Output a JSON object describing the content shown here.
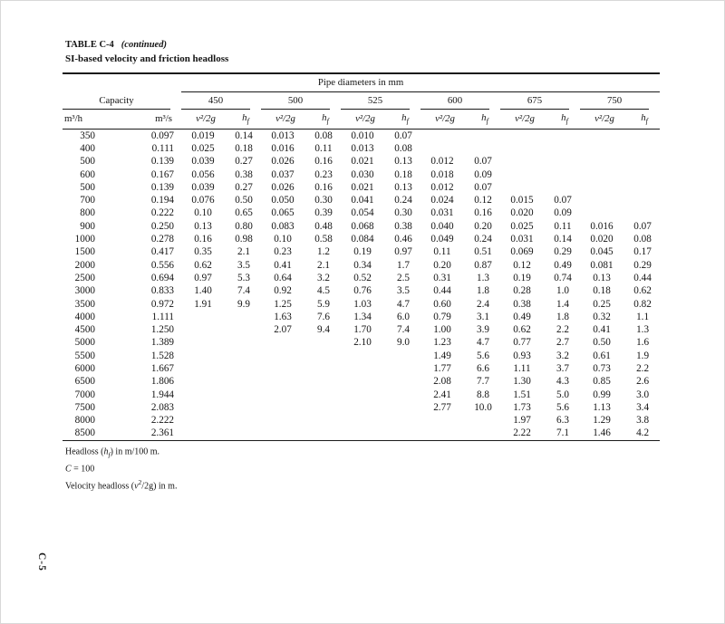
{
  "title": {
    "label": "TABLE C-4",
    "continued": "(continued)",
    "subtitle": "SI-based velocity and friction headloss"
  },
  "table": {
    "span_header": "Pipe diameters in mm",
    "capacity_label": "Capacity",
    "unit_hour": "m³/h",
    "unit_second": "m³/s",
    "diameters": [
      "450",
      "500",
      "525",
      "600",
      "675",
      "750"
    ],
    "velocity_head_label": "v²/2g",
    "headloss_label": {
      "base": "h",
      "sub": "f"
    },
    "rows": [
      [
        "350",
        "0.097",
        "0.019",
        "0.14",
        "0.013",
        "0.08",
        "0.010",
        "0.07",
        "",
        "",
        "",
        "",
        "",
        ""
      ],
      [
        "400",
        "0.111",
        "0.025",
        "0.18",
        "0.016",
        "0.11",
        "0.013",
        "0.08",
        "",
        "",
        "",
        "",
        "",
        ""
      ],
      [
        "500",
        "0.139",
        "0.039",
        "0.27",
        "0.026",
        "0.16",
        "0.021",
        "0.13",
        "0.012",
        "0.07",
        "",
        "",
        "",
        ""
      ],
      [
        "600",
        "0.167",
        "0.056",
        "0.38",
        "0.037",
        "0.23",
        "0.030",
        "0.18",
        "0.018",
        "0.09",
        "",
        "",
        "",
        ""
      ],
      [
        "500",
        "0.139",
        "0.039",
        "0.27",
        "0.026",
        "0.16",
        "0.021",
        "0.13",
        "0.012",
        "0.07",
        "",
        "",
        "",
        ""
      ],
      [
        "700",
        "0.194",
        "0.076",
        "0.50",
        "0.050",
        "0.30",
        "0.041",
        "0.24",
        "0.024",
        "0.12",
        "0.015",
        "0.07",
        "",
        ""
      ],
      [
        "800",
        "0.222",
        "0.10",
        "0.65",
        "0.065",
        "0.39",
        "0.054",
        "0.30",
        "0.031",
        "0.16",
        "0.020",
        "0.09",
        "",
        ""
      ],
      [
        "900",
        "0.250",
        "0.13",
        "0.80",
        "0.083",
        "0.48",
        "0.068",
        "0.38",
        "0.040",
        "0.20",
        "0.025",
        "0.11",
        "0.016",
        "0.07"
      ],
      [
        "1000",
        "0.278",
        "0.16",
        "0.98",
        "0.10",
        "0.58",
        "0.084",
        "0.46",
        "0.049",
        "0.24",
        "0.031",
        "0.14",
        "0.020",
        "0.08"
      ],
      [
        "1500",
        "0.417",
        "0.35",
        "2.1",
        "0.23",
        "1.2",
        "0.19",
        "0.97",
        "0.11",
        "0.51",
        "0.069",
        "0.29",
        "0.045",
        "0.17"
      ],
      [
        "2000",
        "0.556",
        "0.62",
        "3.5",
        "0.41",
        "2.1",
        "0.34",
        "1.7",
        "0.20",
        "0.87",
        "0.12",
        "0.49",
        "0.081",
        "0.29"
      ],
      [
        "2500",
        "0.694",
        "0.97",
        "5.3",
        "0.64",
        "3.2",
        "0.52",
        "2.5",
        "0.31",
        "1.3",
        "0.19",
        "0.74",
        "0.13",
        "0.44"
      ],
      [
        "3000",
        "0.833",
        "1.40",
        "7.4",
        "0.92",
        "4.5",
        "0.76",
        "3.5",
        "0.44",
        "1.8",
        "0.28",
        "1.0",
        "0.18",
        "0.62"
      ],
      [
        "3500",
        "0.972",
        "1.91",
        "9.9",
        "1.25",
        "5.9",
        "1.03",
        "4.7",
        "0.60",
        "2.4",
        "0.38",
        "1.4",
        "0.25",
        "0.82"
      ],
      [
        "4000",
        "1.111",
        "",
        "",
        "1.63",
        "7.6",
        "1.34",
        "6.0",
        "0.79",
        "3.1",
        "0.49",
        "1.8",
        "0.32",
        "1.1"
      ],
      [
        "4500",
        "1.250",
        "",
        "",
        "2.07",
        "9.4",
        "1.70",
        "7.4",
        "1.00",
        "3.9",
        "0.62",
        "2.2",
        "0.41",
        "1.3"
      ],
      [
        "5000",
        "1.389",
        "",
        "",
        "",
        "",
        "2.10",
        "9.0",
        "1.23",
        "4.7",
        "0.77",
        "2.7",
        "0.50",
        "1.6"
      ],
      [
        "5500",
        "1.528",
        "",
        "",
        "",
        "",
        "",
        "",
        "1.49",
        "5.6",
        "0.93",
        "3.2",
        "0.61",
        "1.9"
      ],
      [
        "6000",
        "1.667",
        "",
        "",
        "",
        "",
        "",
        "",
        "1.77",
        "6.6",
        "1.11",
        "3.7",
        "0.73",
        "2.2"
      ],
      [
        "6500",
        "1.806",
        "",
        "",
        "",
        "",
        "",
        "",
        "2.08",
        "7.7",
        "1.30",
        "4.3",
        "0.85",
        "2.6"
      ],
      [
        "7000",
        "1.944",
        "",
        "",
        "",
        "",
        "",
        "",
        "2.41",
        "8.8",
        "1.51",
        "5.0",
        "0.99",
        "3.0"
      ],
      [
        "7500",
        "2.083",
        "",
        "",
        "",
        "",
        "",
        "",
        "2.77",
        "10.0",
        "1.73",
        "5.6",
        "1.13",
        "3.4"
      ],
      [
        "8000",
        "2.222",
        "",
        "",
        "",
        "",
        "",
        "",
        "",
        "",
        "1.97",
        "6.3",
        "1.29",
        "3.8"
      ],
      [
        "8500",
        "2.361",
        "",
        "",
        "",
        "",
        "",
        "",
        "",
        "",
        "2.22",
        "7.1",
        "1.46",
        "4.2"
      ]
    ]
  },
  "footnotes": [
    {
      "pre": "Headloss (",
      "var": "h",
      "sup": "",
      "sub": "f",
      "post": ") in m/100 m."
    },
    {
      "pre": "",
      "var": "C",
      "sup": "",
      "sub": "",
      "post": " = 100"
    },
    {
      "pre": "Velocity headloss (",
      "var": "v",
      "sup": "2",
      "sub": "",
      "post": "/2g) in m."
    }
  ],
  "page_label": "C-5"
}
